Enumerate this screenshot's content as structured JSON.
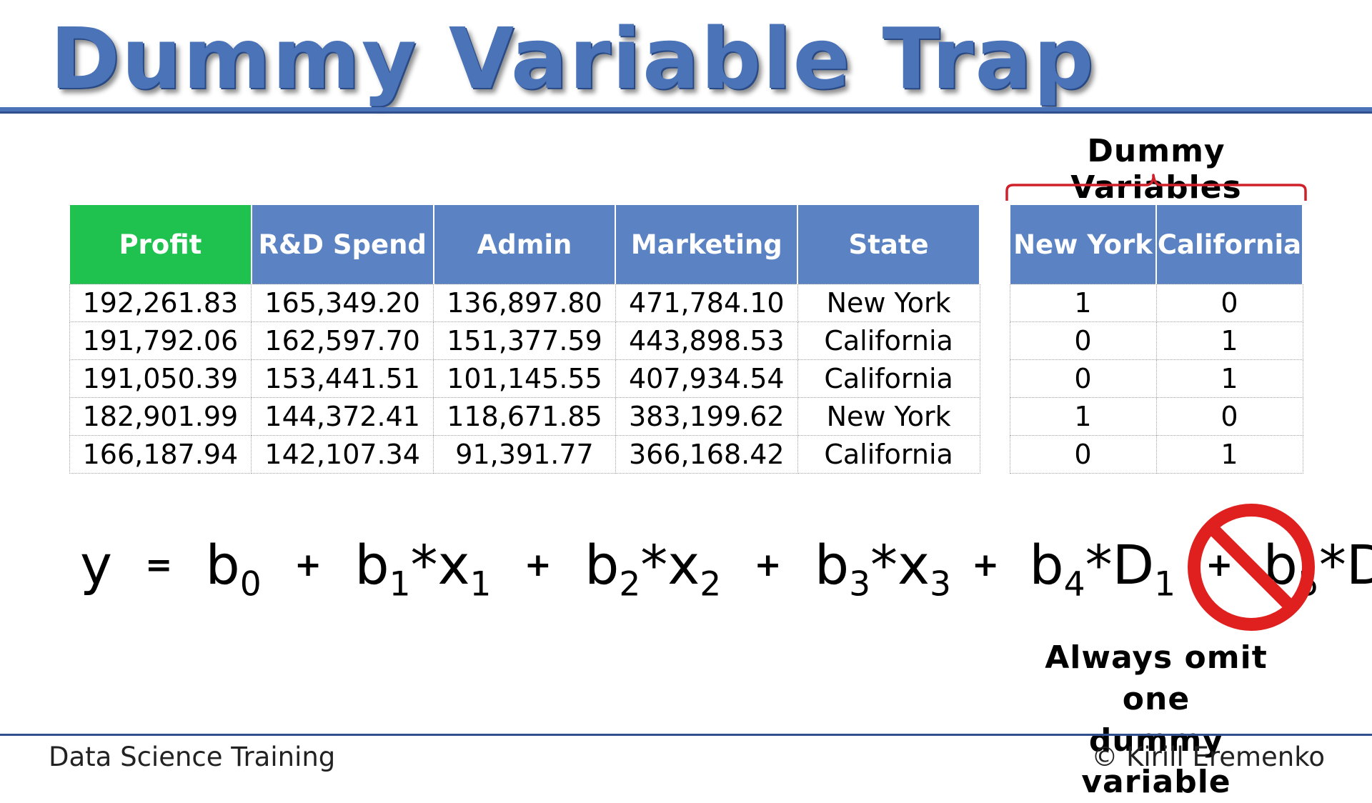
{
  "title": "Dummy Variable Trap",
  "main_table": {
    "headers": [
      "Profit",
      "R&D Spend",
      "Admin",
      "Marketing",
      "State"
    ],
    "rows": [
      [
        "192,261.83",
        "165,349.20",
        "136,897.80",
        "471,784.10",
        "New York"
      ],
      [
        "191,792.06",
        "162,597.70",
        "151,377.59",
        "443,898.53",
        "California"
      ],
      [
        "191,050.39",
        "153,441.51",
        "101,145.55",
        "407,934.54",
        "California"
      ],
      [
        "182,901.99",
        "144,372.41",
        "118,671.85",
        "383,199.62",
        "New York"
      ],
      [
        "166,187.94",
        "142,107.34",
        "91,391.77",
        "366,168.42",
        "California"
      ]
    ]
  },
  "dummy_caption": "Dummy Variables",
  "dummy_table": {
    "headers": [
      "New York",
      "California"
    ],
    "rows": [
      [
        "1",
        "0"
      ],
      [
        "0",
        "1"
      ],
      [
        "0",
        "1"
      ],
      [
        "1",
        "0"
      ],
      [
        "0",
        "1"
      ]
    ]
  },
  "equation": {
    "y": "y",
    "equals": "=",
    "plus": "+",
    "times": "*",
    "b": "b",
    "x": "x",
    "D": "D",
    "sub": [
      "0",
      "1",
      "2",
      "3",
      "4",
      "5"
    ]
  },
  "note": [
    "Always omit one",
    "dummy variable"
  ],
  "footer": {
    "left": "Data Science Training",
    "right": "© Kirill Eremenko"
  },
  "colors": {
    "header_blue": "#5b82c2",
    "header_green": "#1fc24f",
    "title_blue": "#4a73b8",
    "rule_blue": "#2f4f8f",
    "brace_red": "#d0202a",
    "no_symbol_red": "#e0201f"
  },
  "icons": {
    "no_symbol": "prohibition-sign-icon"
  }
}
